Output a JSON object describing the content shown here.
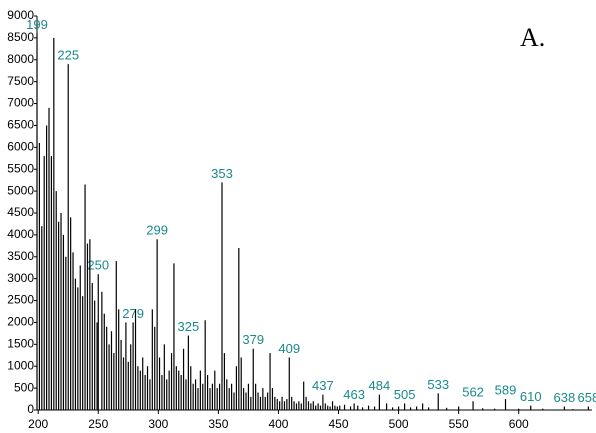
{
  "chart_data": {
    "type": "bar",
    "annotation": "A.",
    "xlim": [
      199,
      661
    ],
    "ylim": [
      0,
      9000
    ],
    "xticks": [
      200,
      250,
      300,
      350,
      400,
      450,
      500,
      550,
      600
    ],
    "yticks": [
      0,
      500,
      1000,
      1500,
      2000,
      2500,
      3000,
      3500,
      4000,
      4500,
      5000,
      5500,
      6000,
      6500,
      7000,
      7500,
      8000,
      8500,
      9000
    ],
    "series": [
      {
        "color": "#000000",
        "labels": true,
        "x": [
          199,
          225,
          250,
          279,
          299,
          325,
          353,
          379,
          409,
          437,
          463,
          484,
          505,
          533,
          562,
          589,
          610,
          638,
          658
        ],
        "values": [
          8600,
          7900,
          3100,
          2000,
          3900,
          1700,
          5200,
          1400,
          1200,
          350,
          150,
          350,
          150,
          380,
          200,
          250,
          100,
          80,
          80
        ]
      },
      {
        "color": "#000000",
        "labels": false,
        "x": [
          201,
          203,
          205,
          207,
          209,
          211,
          213,
          215,
          217,
          219,
          221,
          223,
          227,
          229,
          231,
          233,
          235,
          237,
          239,
          241,
          243,
          245,
          247,
          249,
          253,
          255,
          257,
          259,
          261,
          263,
          265,
          267,
          269,
          271,
          273,
          275,
          277,
          281,
          283,
          285,
          287,
          289,
          291,
          293,
          295,
          297,
          301,
          303,
          305,
          307,
          309,
          311,
          313,
          315,
          317,
          319,
          321,
          323,
          327,
          329,
          331,
          333,
          335,
          337,
          339,
          341,
          343,
          345,
          347,
          349,
          351,
          355,
          357,
          359,
          361,
          363,
          365,
          367,
          369,
          371,
          373,
          375,
          377,
          381,
          383,
          385,
          387,
          389,
          391,
          393,
          395,
          397,
          399,
          401,
          403,
          405,
          407,
          411,
          413,
          415,
          417,
          419,
          421,
          423,
          425,
          427,
          429,
          431,
          433,
          435,
          439,
          441,
          443,
          445,
          447,
          449,
          451,
          455,
          460,
          466,
          470,
          475,
          480,
          490,
          495,
          500,
          510,
          515,
          520,
          525,
          540,
          550,
          570,
          580,
          600,
          620,
          645
        ],
        "values": [
          6100,
          4200,
          5800,
          6500,
          6900,
          5800,
          8500,
          5000,
          4300,
          4500,
          4000,
          3500,
          4400,
          3600,
          3000,
          2800,
          3300,
          2600,
          5150,
          3800,
          3900,
          2900,
          2500,
          2000,
          2700,
          2200,
          1900,
          1500,
          1800,
          1300,
          3400,
          2300,
          1600,
          1200,
          2000,
          1100,
          1500,
          2300,
          1000,
          900,
          1200,
          800,
          1000,
          700,
          2300,
          1900,
          1200,
          800,
          1500,
          700,
          900,
          1300,
          3350,
          1000,
          900,
          800,
          1400,
          700,
          1000,
          600,
          700,
          500,
          900,
          600,
          2050,
          800,
          500,
          600,
          900,
          500,
          600,
          1300,
          700,
          500,
          600,
          400,
          1000,
          3700,
          1200,
          500,
          400,
          600,
          300,
          600,
          400,
          300,
          500,
          300,
          400,
          1300,
          500,
          300,
          250,
          200,
          300,
          200,
          250,
          300,
          200,
          150,
          200,
          150,
          650,
          300,
          200,
          150,
          200,
          100,
          150,
          100,
          150,
          100,
          80,
          200,
          100,
          80,
          100,
          120,
          80,
          100,
          60,
          100,
          80,
          150,
          60,
          80,
          60,
          80,
          150,
          60,
          50,
          80,
          40,
          30,
          30,
          30,
          20
        ]
      }
    ]
  }
}
